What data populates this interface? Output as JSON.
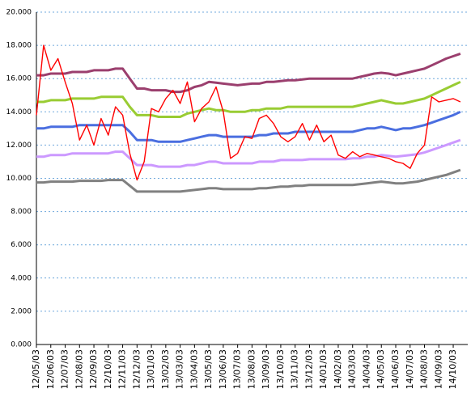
{
  "chart_data": {
    "type": "line",
    "categories": [
      "12/05/03",
      null,
      "12/06/03",
      null,
      "12/07/03",
      null,
      "12/08/03",
      null,
      "12/09/03",
      null,
      "12/10/03",
      null,
      "12/11/03",
      null,
      "12/12/03",
      null,
      "13/01/03",
      null,
      "13/02/03",
      null,
      "13/03/03",
      null,
      "13/04/03",
      null,
      "13/05/03",
      null,
      "13/06/03",
      null,
      "13/07/03",
      null,
      "13/08/03",
      null,
      "13/09/03",
      null,
      "13/10/03",
      null,
      "13/11/03",
      null,
      "13/12/03",
      null,
      "14/01/03",
      null,
      "14/02/03",
      null,
      "14/03/03",
      null,
      "14/04/03",
      null,
      "14/05/03",
      null,
      "14/06/03",
      null,
      "14/07/03",
      null,
      "14/08/03",
      null,
      "14/09/03",
      null,
      "14/10/03",
      null
    ],
    "series": [
      {
        "color": "#9b3f6e",
        "values": [
          16.2,
          16.2,
          16.3,
          16.3,
          16.3,
          16.4,
          16.4,
          16.4,
          16.5,
          16.5,
          16.5,
          16.6,
          16.6,
          16.0,
          15.4,
          15.4,
          15.3,
          15.3,
          15.3,
          15.2,
          15.2,
          15.3,
          15.5,
          15.6,
          15.8,
          15.75,
          15.7,
          15.65,
          15.6,
          15.65,
          15.7,
          15.7,
          15.8,
          15.8,
          15.85,
          15.9,
          15.9,
          15.95,
          16.0,
          16.0,
          16.0,
          16.0,
          16.0,
          16.0,
          16.0,
          16.1,
          16.2,
          16.3,
          16.35,
          16.3,
          16.2,
          16.3,
          16.4,
          16.5,
          16.6,
          16.8,
          17.0,
          17.2,
          17.35,
          17.5
        ]
      },
      {
        "color": "#99cc33",
        "values": [
          14.6,
          14.6,
          14.7,
          14.7,
          14.7,
          14.8,
          14.8,
          14.8,
          14.8,
          14.9,
          14.9,
          14.9,
          14.9,
          14.3,
          13.8,
          13.8,
          13.8,
          13.7,
          13.7,
          13.7,
          13.7,
          13.9,
          14.0,
          14.1,
          14.2,
          14.1,
          14.1,
          14.0,
          14.0,
          14.0,
          14.1,
          14.1,
          14.2,
          14.2,
          14.2,
          14.3,
          14.3,
          14.3,
          14.3,
          14.3,
          14.3,
          14.3,
          14.3,
          14.3,
          14.3,
          14.4,
          14.5,
          14.6,
          14.7,
          14.6,
          14.5,
          14.5,
          14.6,
          14.7,
          14.8,
          15.0,
          15.2,
          15.4,
          15.6,
          15.8
        ]
      },
      {
        "color": "#4a6ee0",
        "values": [
          13.0,
          13.0,
          13.1,
          13.1,
          13.1,
          13.1,
          13.2,
          13.2,
          13.2,
          13.2,
          13.2,
          13.2,
          13.2,
          12.8,
          12.3,
          12.3,
          12.3,
          12.2,
          12.2,
          12.2,
          12.2,
          12.3,
          12.4,
          12.5,
          12.6,
          12.6,
          12.5,
          12.5,
          12.5,
          12.5,
          12.5,
          12.6,
          12.6,
          12.7,
          12.7,
          12.7,
          12.8,
          12.8,
          12.8,
          12.8,
          12.8,
          12.8,
          12.8,
          12.8,
          12.8,
          12.9,
          13.0,
          13.0,
          13.1,
          13.0,
          12.9,
          13.0,
          13.0,
          13.1,
          13.2,
          13.35,
          13.5,
          13.65,
          13.8,
          14.0
        ]
      },
      {
        "color": "#cc99ff",
        "values": [
          11.3,
          11.3,
          11.4,
          11.4,
          11.4,
          11.5,
          11.5,
          11.5,
          11.5,
          11.5,
          11.5,
          11.6,
          11.6,
          11.2,
          10.8,
          10.8,
          10.8,
          10.7,
          10.7,
          10.7,
          10.7,
          10.8,
          10.8,
          10.9,
          11.0,
          11.0,
          10.9,
          10.9,
          10.9,
          10.9,
          10.9,
          11.0,
          11.0,
          11.0,
          11.1,
          11.1,
          11.1,
          11.1,
          11.15,
          11.15,
          11.15,
          11.15,
          11.15,
          11.15,
          11.2,
          11.2,
          11.3,
          11.3,
          11.4,
          11.35,
          11.3,
          11.35,
          11.4,
          11.45,
          11.55,
          11.7,
          11.85,
          12.0,
          12.15,
          12.3
        ]
      },
      {
        "color": "#808080",
        "values": [
          9.75,
          9.75,
          9.8,
          9.8,
          9.8,
          9.8,
          9.85,
          9.85,
          9.85,
          9.85,
          9.9,
          9.9,
          9.9,
          9.55,
          9.2,
          9.2,
          9.2,
          9.2,
          9.2,
          9.2,
          9.2,
          9.25,
          9.3,
          9.35,
          9.4,
          9.4,
          9.35,
          9.35,
          9.35,
          9.35,
          9.35,
          9.4,
          9.4,
          9.45,
          9.5,
          9.5,
          9.55,
          9.55,
          9.6,
          9.6,
          9.6,
          9.6,
          9.6,
          9.6,
          9.6,
          9.65,
          9.7,
          9.75,
          9.8,
          9.75,
          9.7,
          9.7,
          9.75,
          9.8,
          9.9,
          10.0,
          10.1,
          10.2,
          10.35,
          10.5
        ]
      },
      {
        "color": "#ff0000",
        "values": [
          13.8,
          18.0,
          16.5,
          17.2,
          15.8,
          14.5,
          12.3,
          13.2,
          12.0,
          13.6,
          12.6,
          14.3,
          13.8,
          11.5,
          9.9,
          11.0,
          14.2,
          14.0,
          14.8,
          15.3,
          14.5,
          15.8,
          13.4,
          14.2,
          14.6,
          15.5,
          14.0,
          11.2,
          11.5,
          12.5,
          12.4,
          13.6,
          13.8,
          13.3,
          12.5,
          12.2,
          12.5,
          13.3,
          12.3,
          13.2,
          12.2,
          12.6,
          11.4,
          11.2,
          11.6,
          11.3,
          11.5,
          11.4,
          11.3,
          11.2,
          11.0,
          10.9,
          10.6,
          11.5,
          12.0,
          14.9,
          14.6,
          14.7,
          14.8,
          14.6
        ]
      }
    ],
    "ylim": [
      0,
      20
    ],
    "yticks": [
      {
        "value": 0,
        "label": "0.000"
      },
      {
        "value": 2,
        "label": "2.000"
      },
      {
        "value": 4,
        "label": "4.000"
      },
      {
        "value": 6,
        "label": "6.000"
      },
      {
        "value": 8,
        "label": "8.000"
      },
      {
        "value": 10,
        "label": "10.000"
      },
      {
        "value": 12,
        "label": "12.000"
      },
      {
        "value": 14,
        "label": "14.000"
      },
      {
        "value": 16,
        "label": "16.000"
      },
      {
        "value": 18,
        "label": "18.000"
      },
      {
        "value": 20,
        "label": "20.000"
      }
    ],
    "grid": true
  }
}
